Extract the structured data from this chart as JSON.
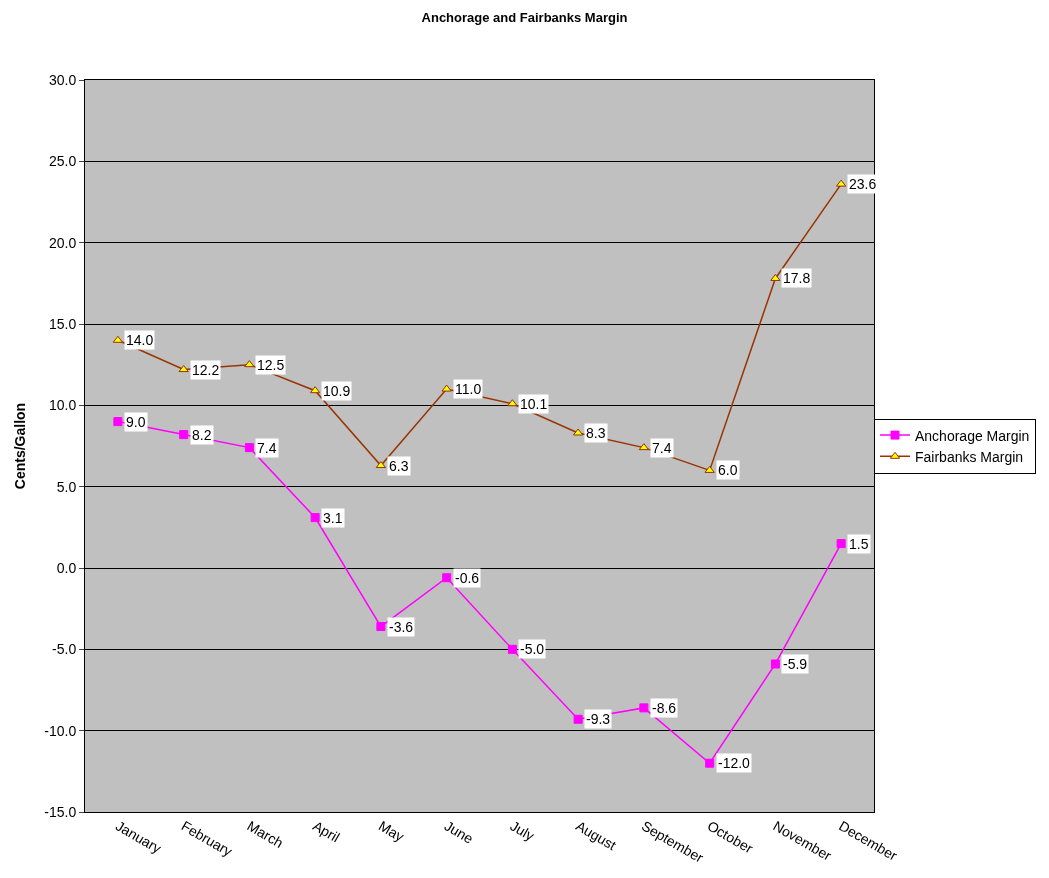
{
  "chart_data": {
    "type": "line",
    "title": "Anchorage and Fairbanks Margin",
    "ylabel": "Cents/Gallon",
    "categories": [
      "January",
      "February",
      "March",
      "April",
      "May",
      "June",
      "July",
      "August",
      "September",
      "October",
      "November",
      "December"
    ],
    "series": [
      {
        "name": "Anchorage Margin",
        "color": "#ff00ff",
        "marker": "square",
        "values": [
          9.0,
          8.2,
          7.4,
          3.1,
          -3.6,
          -0.6,
          -5.0,
          -9.3,
          -8.6,
          -12.0,
          -5.9,
          1.5
        ],
        "value_labels": [
          "9.0",
          "8.2",
          "7.4",
          "3.1",
          "-3.6",
          "-0.6",
          "-5.0",
          "-9.3",
          "-8.6",
          "-12.0",
          "-5.9",
          "1.5"
        ]
      },
      {
        "name": "Fairbanks Margin",
        "color": "#993300",
        "marker": "triangle",
        "values": [
          14.0,
          12.2,
          12.5,
          10.9,
          6.3,
          11.0,
          10.1,
          8.3,
          7.4,
          6.0,
          17.8,
          23.6
        ],
        "value_labels": [
          "14.0",
          "12.2",
          "12.5",
          "10.9",
          "6.3",
          "11.0",
          "10.1",
          "8.3",
          "7.4",
          "6.0",
          "17.8",
          "23.6"
        ]
      }
    ],
    "ylim": [
      -15,
      30
    ],
    "yticks": [
      {
        "value": -15,
        "label": "-15.0"
      },
      {
        "value": -10,
        "label": "-10.0"
      },
      {
        "value": -5,
        "label": "-5.0"
      },
      {
        "value": 0,
        "label": "0.0"
      },
      {
        "value": 5,
        "label": "5.0"
      },
      {
        "value": 10,
        "label": "10.0"
      },
      {
        "value": 15,
        "label": "15.0"
      },
      {
        "value": 20,
        "label": "20.0"
      },
      {
        "value": 25,
        "label": "25.0"
      },
      {
        "value": 30,
        "label": "30.0"
      }
    ],
    "grid": "y",
    "legend": "right"
  }
}
